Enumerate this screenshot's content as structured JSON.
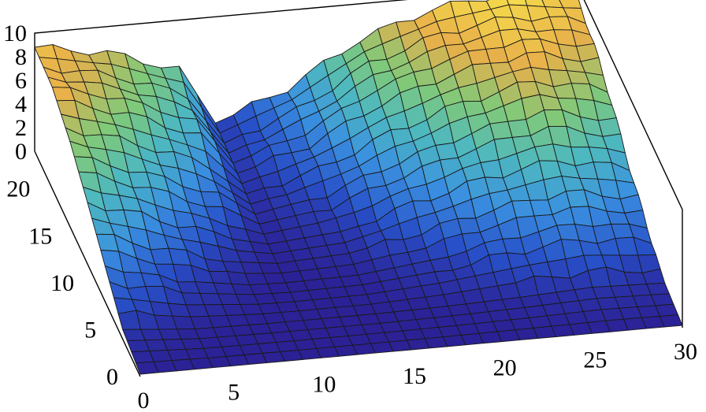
{
  "chart_data": {
    "type": "surface",
    "title": "",
    "xlabel": "",
    "ylabel": "",
    "zlabel": "",
    "xlim": [
      0,
      30
    ],
    "ylim": [
      0,
      24
    ],
    "zlim": [
      0,
      10
    ],
    "x_ticks": [
      "0",
      "5",
      "10",
      "15",
      "20",
      "25",
      "30"
    ],
    "y_ticks": [
      "0",
      "5",
      "10",
      "15",
      "20"
    ],
    "z_ticks": [
      "0",
      "2",
      "4",
      "6",
      "8",
      "10"
    ],
    "grid": false,
    "colormap": [
      "#2c1a8e",
      "#2850c8",
      "#3a8fe0",
      "#4db8c0",
      "#7fc97a",
      "#e8b04a",
      "#f7e34c"
    ],
    "surface": {
      "description_x": [
        0,
        4,
        8,
        10,
        14,
        18,
        22,
        26,
        30
      ],
      "description_y": [
        0,
        4,
        8,
        12,
        16,
        20,
        24
      ],
      "z": [
        [
          0.2,
          0.2,
          0.2,
          0.2,
          0.2,
          0.2,
          0.2,
          0.2,
          0.2
        ],
        [
          0.8,
          0.3,
          0.2,
          0.2,
          0.2,
          0.3,
          0.5,
          0.8,
          0.6
        ],
        [
          3.0,
          1.2,
          0.3,
          0.2,
          0.3,
          1.0,
          2.2,
          3.0,
          2.2
        ],
        [
          5.2,
          3.2,
          1.0,
          0.3,
          0.8,
          2.6,
          4.2,
          5.2,
          4.0
        ],
        [
          7.2,
          5.2,
          2.8,
          0.5,
          1.8,
          4.2,
          6.2,
          7.6,
          6.2
        ],
        [
          8.6,
          7.0,
          4.6,
          0.8,
          2.8,
          6.0,
          8.0,
          9.0,
          8.0
        ],
        [
          8.8,
          7.8,
          5.8,
          1.0,
          3.4,
          7.0,
          9.0,
          9.8,
          9.0
        ]
      ]
    }
  }
}
